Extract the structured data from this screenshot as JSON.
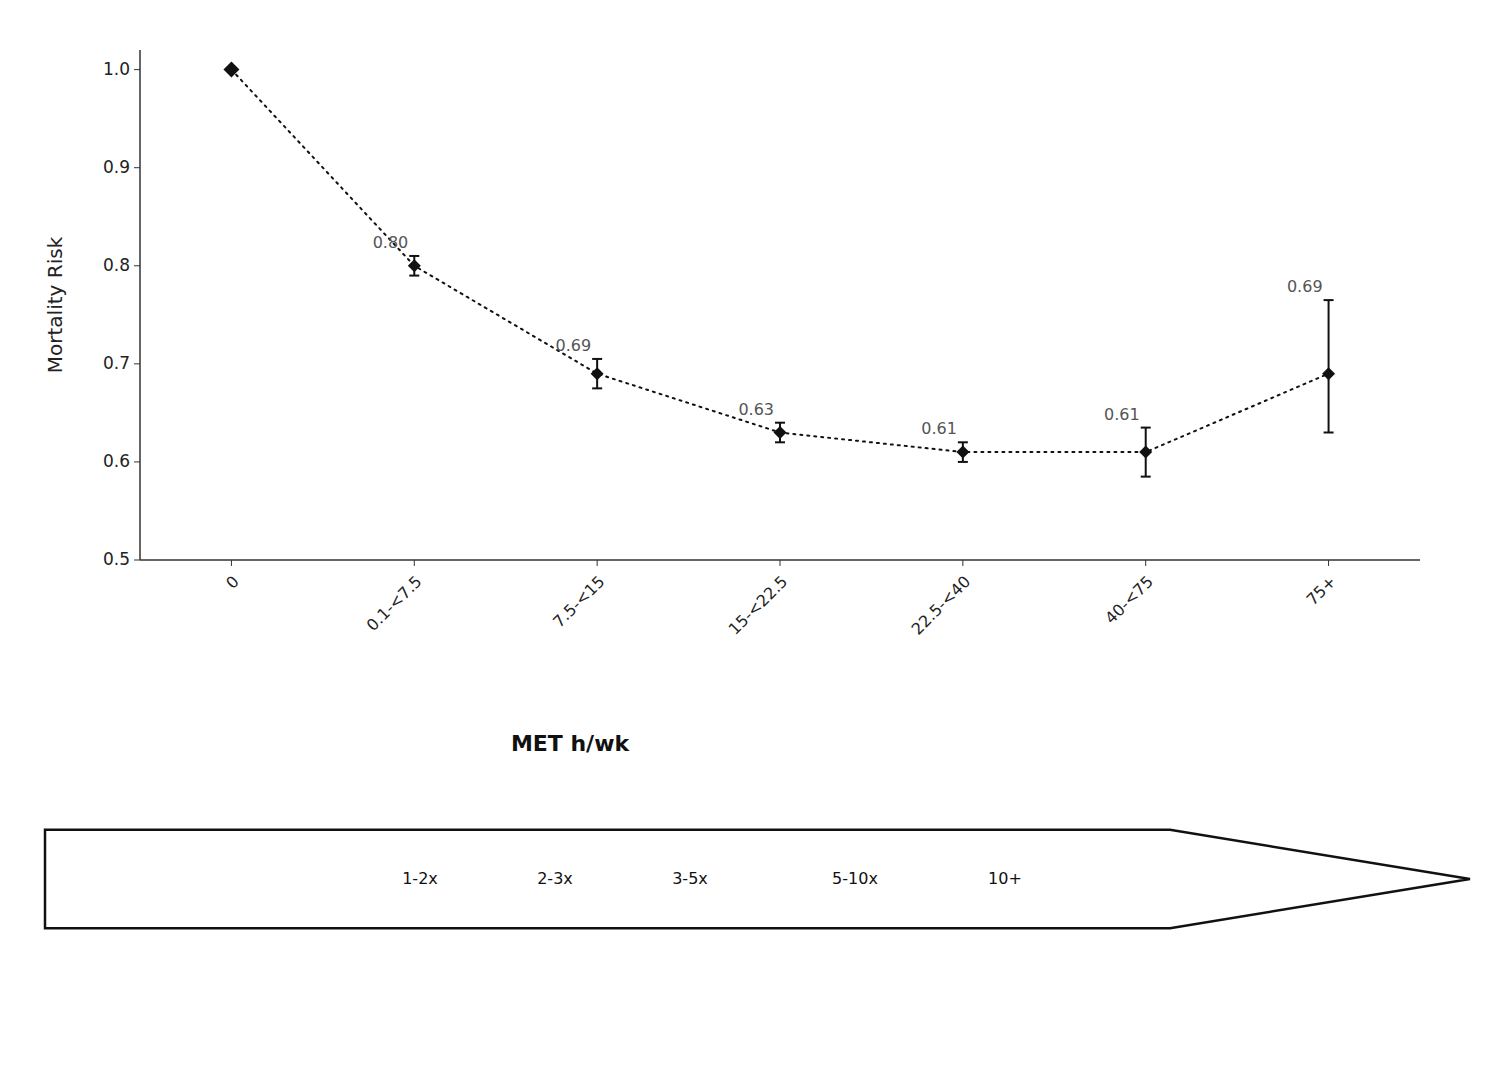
{
  "chart_data": {
    "type": "line",
    "categories": [
      "0",
      "0.1-<7.5",
      "7.5-<15",
      "15-<22.5",
      "22.5-<40",
      "40-<75",
      "75+"
    ],
    "values": [
      1.0,
      0.8,
      0.69,
      0.63,
      0.61,
      0.61,
      0.69
    ],
    "error_low": [
      0.0,
      0.01,
      0.015,
      0.01,
      0.01,
      0.025,
      0.06
    ],
    "error_high": [
      0.0,
      0.01,
      0.015,
      0.01,
      0.01,
      0.025,
      0.075
    ],
    "value_labels": [
      null,
      "0.80",
      "0.69",
      "0.63",
      "0.61",
      "0.61",
      "0.69"
    ],
    "data_labels": true,
    "ylabel": "Mortality Risk",
    "xlabel": "MET h/wk",
    "annotations": [
      "1-2x",
      "2-3x",
      "3-5x",
      "5-10x",
      "10+"
    ],
    "ylim": [
      0.5,
      1.02
    ],
    "yticks": [
      0.5,
      0.6,
      0.7,
      0.8,
      0.9,
      {
        "value": 1.0,
        "label": "1.0"
      }
    ],
    "color": "#111111",
    "marker": "diamond",
    "line_style": "dotted",
    "grid": false
  }
}
